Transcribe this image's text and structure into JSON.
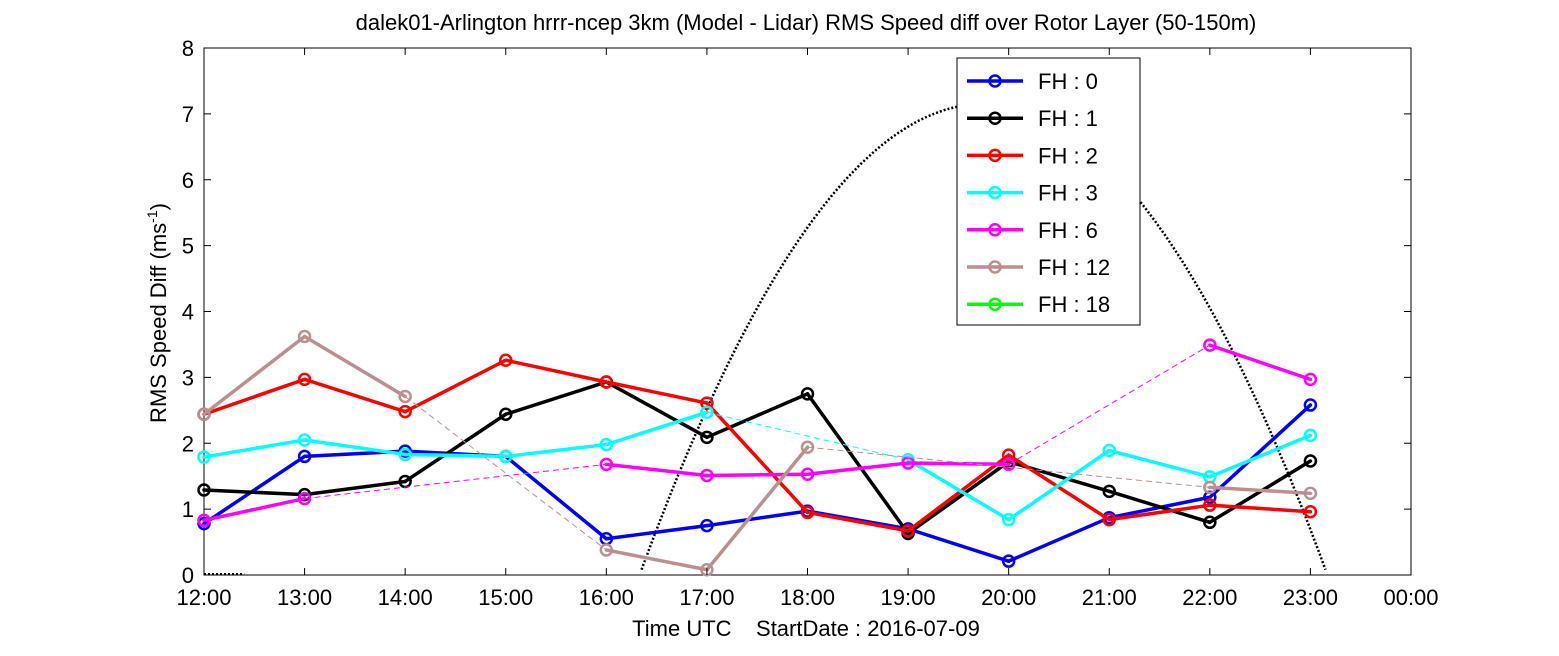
{
  "chart_data": {
    "type": "line",
    "title": "dalek01-Arlington hrrr-ncep 3km (Model - Lidar) RMS Speed diff over Rotor Layer (50-150m)",
    "xlabel": "Time UTC    StartDate : 2016-07-09",
    "ylabel_main": "RMS Speed Diff (ms",
    "ylabel_sup": "-1",
    "ylabel_tail": ")",
    "x_ticks": [
      "12:00",
      "13:00",
      "14:00",
      "15:00",
      "16:00",
      "17:00",
      "18:00",
      "19:00",
      "20:00",
      "21:00",
      "22:00",
      "23:00",
      "00:00"
    ],
    "y_ticks": [
      "0",
      "1",
      "2",
      "3",
      "4",
      "5",
      "6",
      "7",
      "8"
    ],
    "xlim": [
      12,
      24
    ],
    "ylim": [
      0,
      8
    ],
    "grid": false,
    "legend_position": "top-right",
    "series": [
      {
        "name": "FH : 0",
        "color": "#0000ff",
        "x": [
          12,
          13,
          14,
          15,
          16,
          17,
          18,
          19,
          20,
          21,
          22,
          23
        ],
        "y": [
          0.78,
          1.8,
          1.88,
          1.8,
          0.55,
          0.75,
          0.97,
          0.7,
          0.21,
          0.87,
          1.18,
          2.58
        ]
      },
      {
        "name": "FH : 1",
        "color": "#000000",
        "x": [
          12,
          13,
          14,
          15,
          16,
          17,
          18,
          19,
          20,
          21,
          22,
          23
        ],
        "y": [
          1.29,
          1.22,
          1.42,
          2.44,
          2.93,
          2.09,
          2.75,
          0.63,
          1.72,
          1.27,
          0.8,
          1.73
        ]
      },
      {
        "name": "FH : 2",
        "color": "#ff0000",
        "x": [
          12,
          13,
          14,
          15,
          16,
          17,
          18,
          19,
          20,
          21,
          22,
          23
        ],
        "y": [
          2.44,
          2.97,
          2.48,
          3.26,
          2.93,
          2.61,
          0.95,
          0.67,
          1.82,
          0.84,
          1.06,
          0.96
        ]
      },
      {
        "name": "FH : 3",
        "color": "#00ffff",
        "x": [
          12,
          13,
          14,
          15,
          16,
          17,
          18,
          19,
          20,
          21,
          22,
          23
        ],
        "y": [
          1.79,
          2.05,
          1.83,
          1.8,
          1.98,
          2.47,
          null,
          1.75,
          0.84,
          1.89,
          1.49,
          2.12
        ],
        "gap_segments": [
          [
            17,
            19
          ]
        ]
      },
      {
        "name": "FH : 6",
        "color": "#ff00ff",
        "x": [
          12,
          13,
          14,
          15,
          16,
          17,
          18,
          19,
          20,
          21,
          22,
          23
        ],
        "y": [
          0.83,
          1.16,
          null,
          null,
          1.68,
          1.51,
          1.53,
          1.7,
          1.68,
          null,
          3.49,
          2.97
        ],
        "gap_segments": [
          [
            13,
            16
          ],
          [
            20,
            22
          ]
        ]
      },
      {
        "name": "FH : 12",
        "color": "#bc8f8f",
        "x": [
          12,
          13,
          14,
          15,
          16,
          17,
          18,
          19,
          20,
          21,
          22,
          23
        ],
        "y": [
          2.44,
          3.62,
          2.71,
          null,
          0.38,
          0.08,
          1.94,
          null,
          null,
          null,
          1.33,
          1.24
        ],
        "gap_segments": [
          [
            14,
            16
          ],
          [
            18,
            22
          ]
        ]
      },
      {
        "name": "FH : 18",
        "color": "#00ff00",
        "x": [],
        "y": []
      }
    ],
    "reference_curve": {
      "style": "dotted",
      "color": "#000000",
      "peak_y": 7.15,
      "peak_x": 19.75,
      "x_start": 12,
      "x_end": 24
    }
  }
}
